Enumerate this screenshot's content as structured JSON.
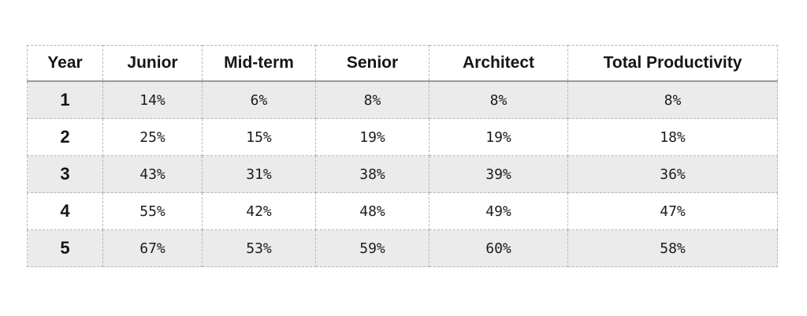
{
  "chart_data": {
    "type": "table",
    "columns": [
      "Year",
      "Junior",
      "Mid-term",
      "Senior",
      "Architect",
      "Total Productivity"
    ],
    "rows": [
      [
        "1",
        "14%",
        "6%",
        "8%",
        "8%",
        "8%"
      ],
      [
        "2",
        "25%",
        "15%",
        "19%",
        "19%",
        "18%"
      ],
      [
        "3",
        "43%",
        "31%",
        "38%",
        "39%",
        "36%"
      ],
      [
        "4",
        "55%",
        "42%",
        "48%",
        "49%",
        "47%"
      ],
      [
        "5",
        "67%",
        "53%",
        "59%",
        "60%",
        "58%"
      ]
    ],
    "row_shading": [
      "#ebebeb",
      "#ffffff"
    ]
  }
}
